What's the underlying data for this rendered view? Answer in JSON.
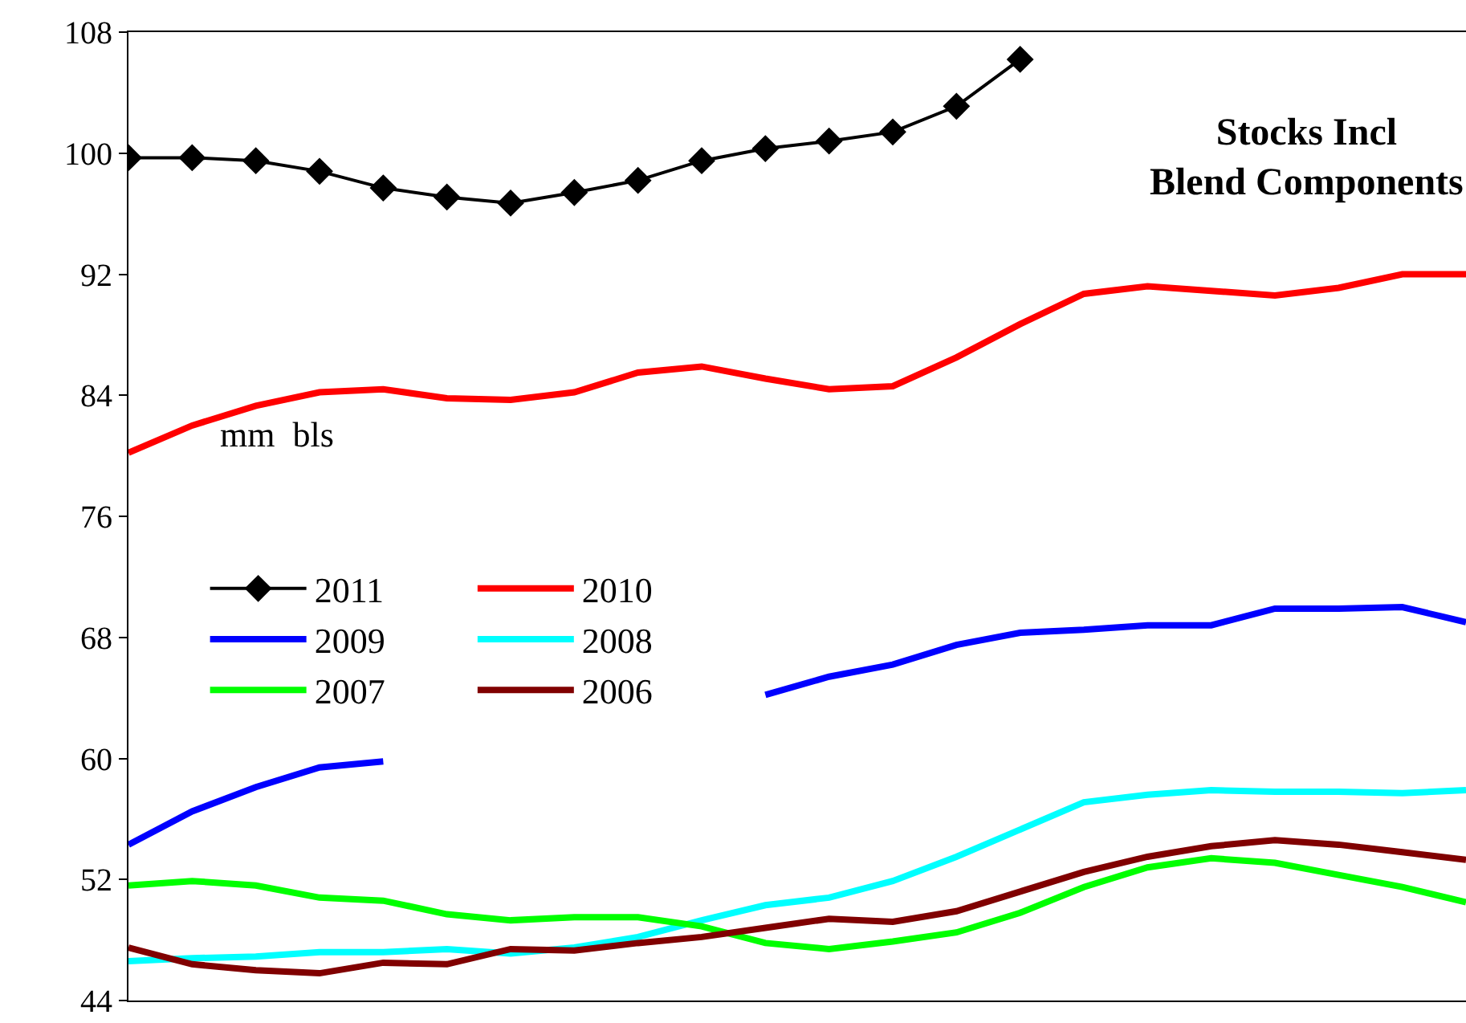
{
  "chart_data": {
    "type": "line",
    "title": "Stocks Incl\nBlend Components",
    "annotations": [
      "mm  bls"
    ],
    "categories": [
      null,
      null,
      null,
      null,
      null,
      null,
      null,
      null,
      null,
      null,
      null,
      null,
      null,
      null,
      null,
      null,
      null,
      null,
      null,
      null,
      null,
      null
    ],
    "series": [
      {
        "name": "2011",
        "color": "#000000",
        "marker": "diamond",
        "values": [
          99.7,
          99.7,
          99.5,
          98.8,
          97.7,
          97.1,
          96.7,
          97.4,
          98.2,
          99.5,
          100.3,
          100.8,
          101.4,
          103.1,
          106.2,
          null,
          null,
          null,
          null,
          null,
          null,
          null
        ]
      },
      {
        "name": "2010",
        "color": "#ff0000",
        "values": [
          80.2,
          82.0,
          83.3,
          84.2,
          84.4,
          83.8,
          83.7,
          84.2,
          85.5,
          85.9,
          85.1,
          84.4,
          84.6,
          86.5,
          88.7,
          90.7,
          91.2,
          90.9,
          90.6,
          91.1,
          92.0,
          92.0
        ]
      },
      {
        "name": "2009",
        "color": "#0000ff",
        "values": [
          54.3,
          56.5,
          58.1,
          59.4,
          59.8,
          null,
          null,
          null,
          null,
          null,
          64.2,
          65.4,
          66.2,
          67.5,
          68.3,
          68.5,
          68.8,
          68.8,
          69.9,
          69.9,
          70.0,
          69.0
        ]
      },
      {
        "name": "2008",
        "color": "#00ffff",
        "values": [
          46.6,
          46.8,
          46.9,
          47.2,
          47.2,
          47.4,
          47.1,
          47.5,
          48.2,
          49.3,
          50.3,
          50.8,
          51.9,
          53.5,
          55.3,
          57.1,
          57.6,
          57.9,
          57.8,
          57.8,
          57.7,
          57.9
        ]
      },
      {
        "name": "2007",
        "color": "#00ff00",
        "values": [
          51.6,
          51.9,
          51.6,
          50.8,
          50.6,
          49.7,
          49.3,
          49.5,
          49.5,
          48.9,
          47.8,
          47.4,
          47.9,
          48.5,
          49.8,
          51.5,
          52.8,
          53.4,
          53.1,
          52.3,
          51.5,
          50.5
        ]
      },
      {
        "name": "2006",
        "color": "#800000",
        "values": [
          47.5,
          46.4,
          46.0,
          45.8,
          46.5,
          46.4,
          47.4,
          47.3,
          47.8,
          48.2,
          48.8,
          49.4,
          49.2,
          49.9,
          51.2,
          52.5,
          53.5,
          54.2,
          54.6,
          54.3,
          53.8,
          53.3
        ]
      }
    ],
    "ylim": [
      44,
      108
    ],
    "yticks": [
      44,
      52,
      60,
      68,
      76,
      84,
      92,
      100,
      108
    ],
    "grid": false,
    "legend": "left",
    "tick_labels": "y"
  }
}
